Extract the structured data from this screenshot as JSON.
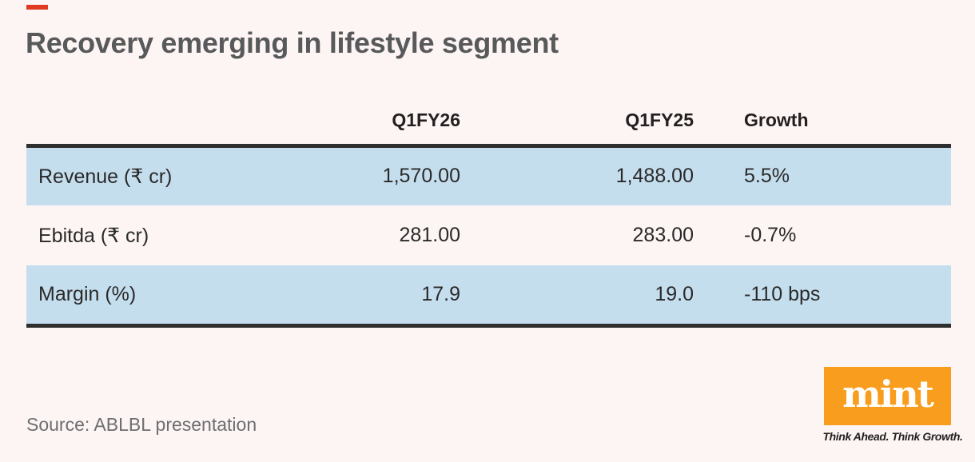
{
  "colors": {
    "background": "#FDF5F3",
    "accent_dash": "#E03A21",
    "row_highlight": "#C5DEEE",
    "rule": "#2E2E2E",
    "title_text": "#58595B",
    "logo_orange": "#F89D1D"
  },
  "chart_data": {
    "type": "table",
    "title": "Recovery emerging in lifestyle segment",
    "columns": [
      "",
      "Q1FY26",
      "Q1FY25",
      "Growth"
    ],
    "rows": [
      {
        "label": "Revenue (₹ cr)",
        "values": [
          "1,570.00",
          "1,488.00",
          "5.5%"
        ]
      },
      {
        "label": "Ebitda (₹ cr)",
        "values": [
          "281.00",
          "283.00",
          "-0.7%"
        ]
      },
      {
        "label": "Margin (%)",
        "values": [
          "17.9",
          "19.0",
          "-110 bps"
        ]
      }
    ],
    "highlighted_row_indexes": [
      0,
      2
    ],
    "layout": {
      "zebra_highlight": "#C5DEEE",
      "rule_color": "#2E2E2E",
      "grid": "off",
      "legend": "none"
    }
  },
  "footer": {
    "source": "Source: ABLBL presentation"
  },
  "logo": {
    "text": "mint",
    "tagline": "Think Ahead. Think Growth."
  }
}
